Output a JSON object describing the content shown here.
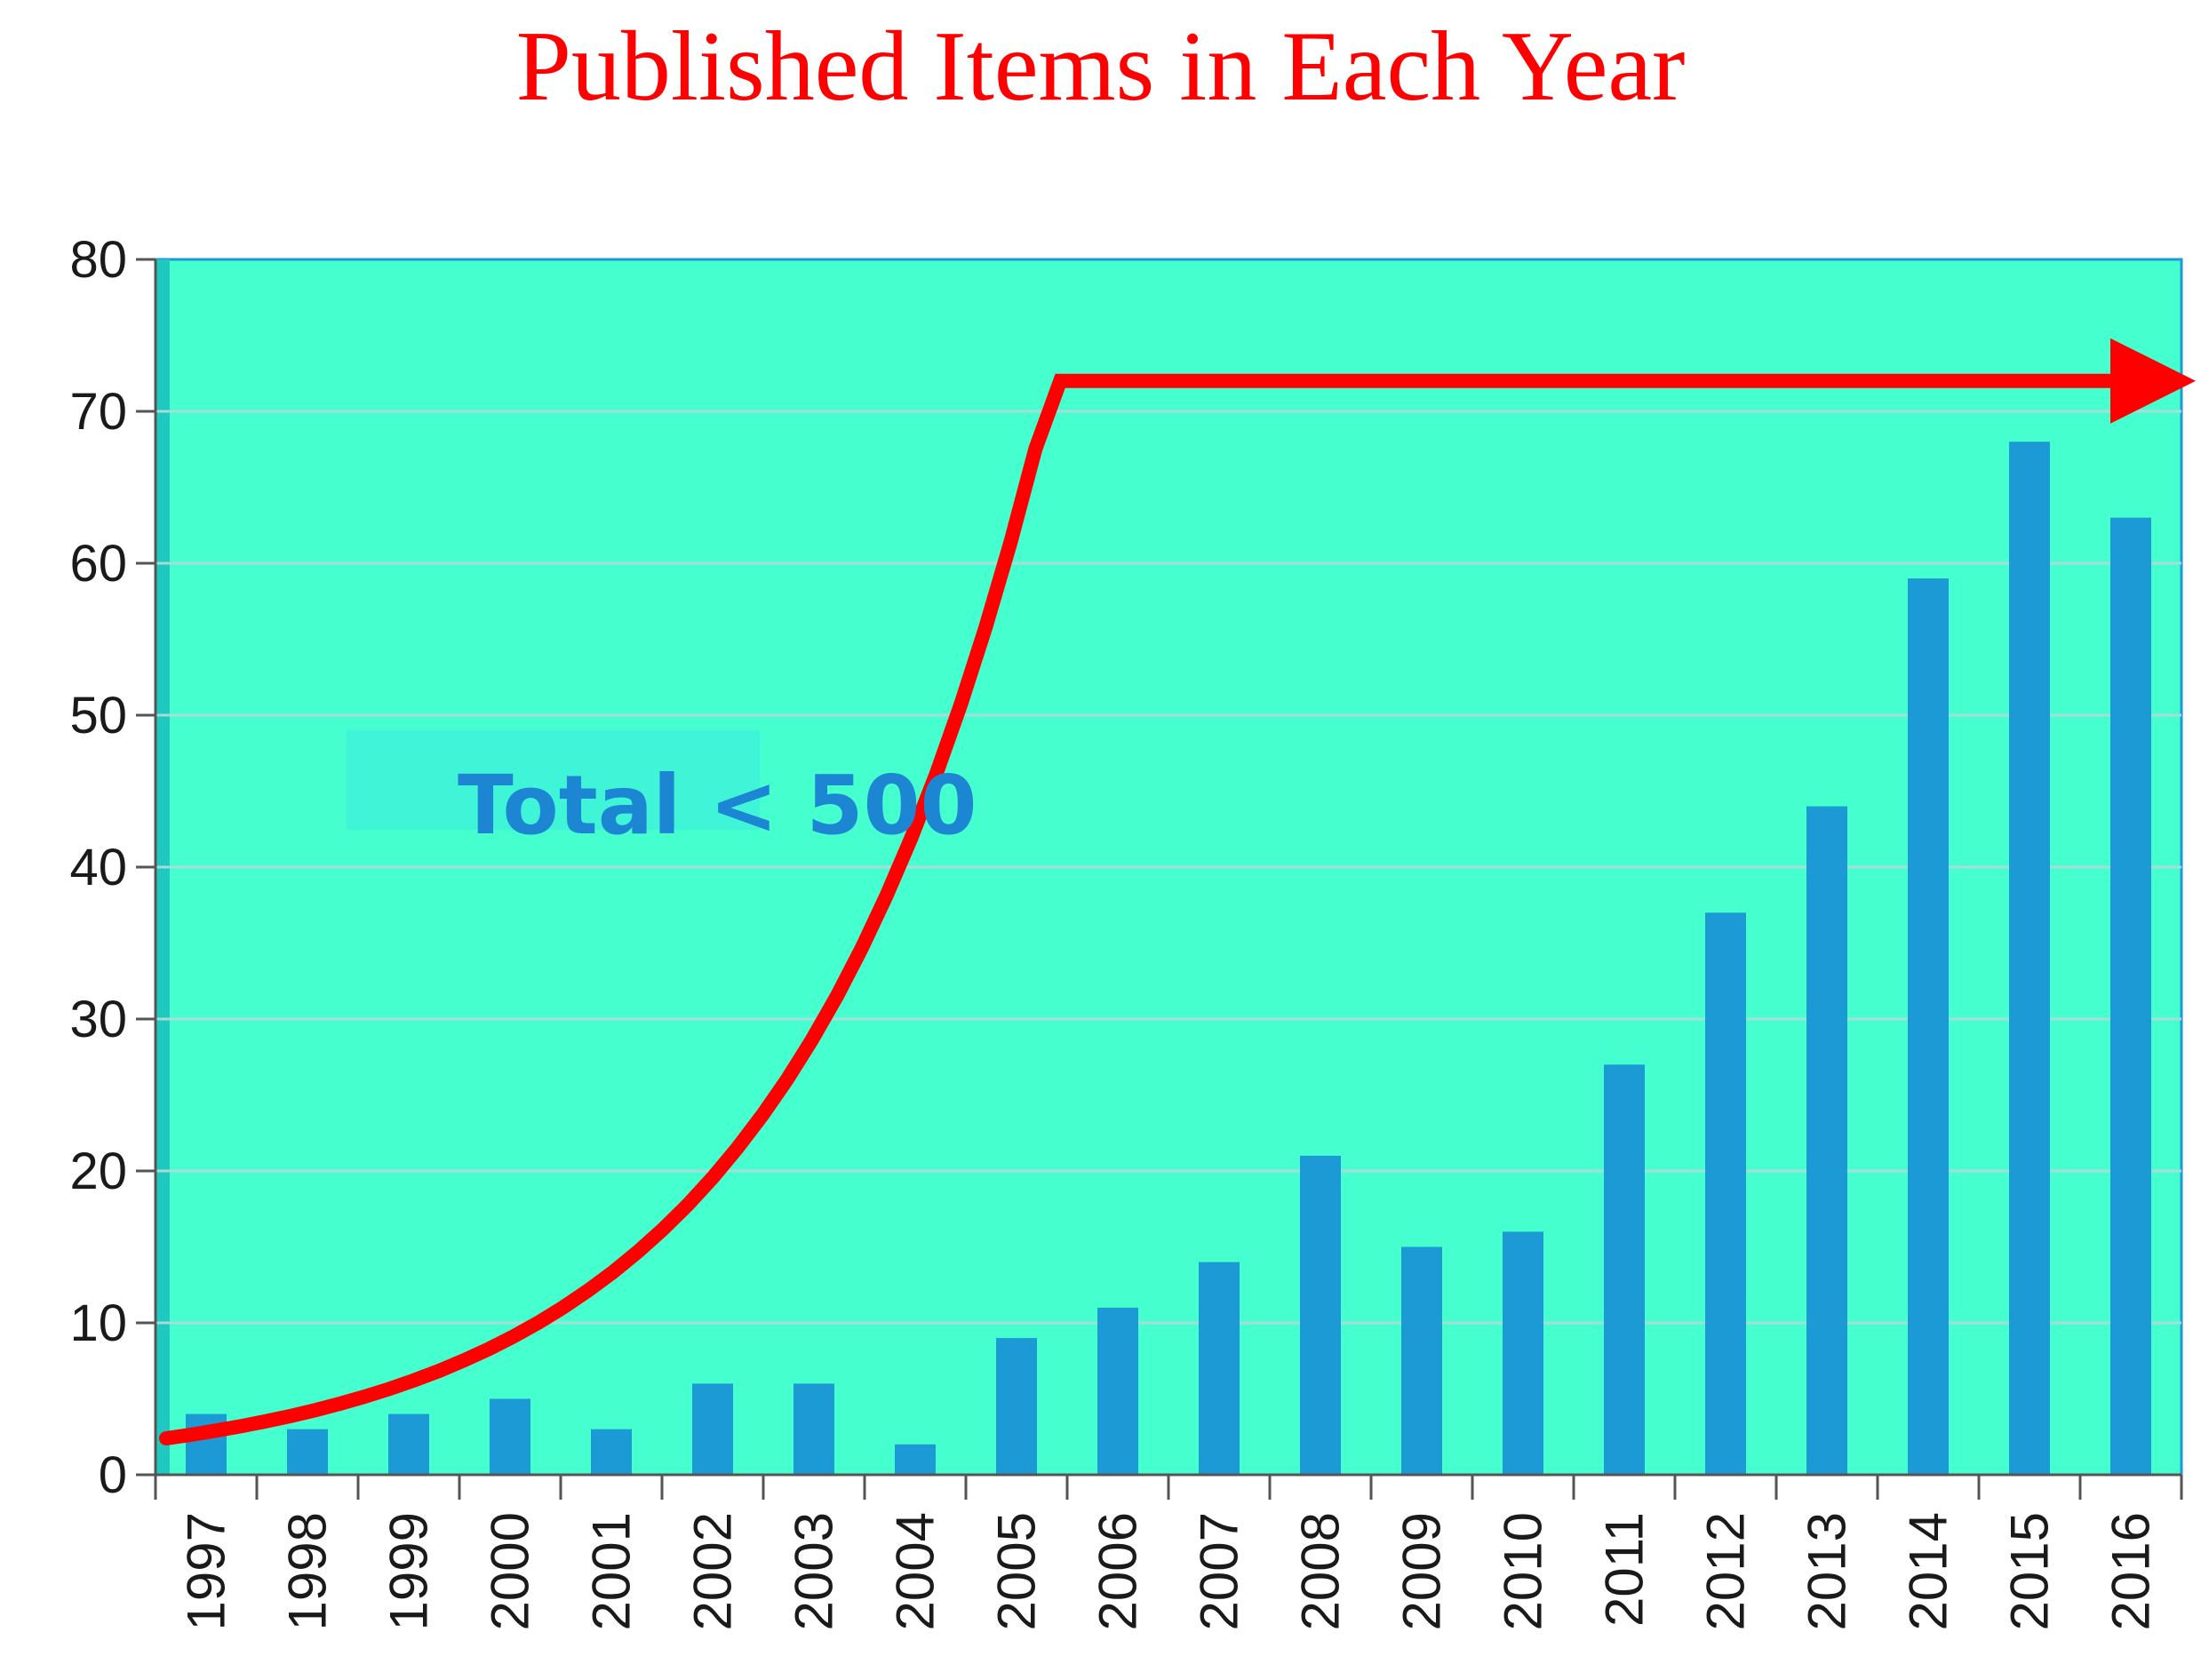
{
  "chart_data": {
    "type": "bar",
    "title": "Published Items in Each Year",
    "xlabel": "",
    "ylabel": "",
    "categories": [
      "1997",
      "1998",
      "1999",
      "2000",
      "2001",
      "2002",
      "2003",
      "2004",
      "2005",
      "2006",
      "2007",
      "2008",
      "2009",
      "2010",
      "2011",
      "2012",
      "2013",
      "2014",
      "2015",
      "2016"
    ],
    "values": [
      4,
      3,
      4,
      5,
      3,
      6,
      6,
      2,
      9,
      11,
      14,
      21,
      15,
      16,
      27,
      37,
      44,
      59,
      68,
      63
    ],
    "ylim": [
      0,
      80
    ],
    "yticks": [
      0,
      10,
      20,
      30,
      40,
      50,
      60,
      70,
      80
    ],
    "grid": true,
    "annotation": "Total < 500",
    "trend": "exponential growth arrow",
    "colors": {
      "title": "#ff0000",
      "plot_background": "#46ffce",
      "bars": "#1b9ad6",
      "trend_arrow": "#ff0000",
      "annotation_text": "#1d86d3",
      "gridlines": "#a8dcd6"
    }
  }
}
